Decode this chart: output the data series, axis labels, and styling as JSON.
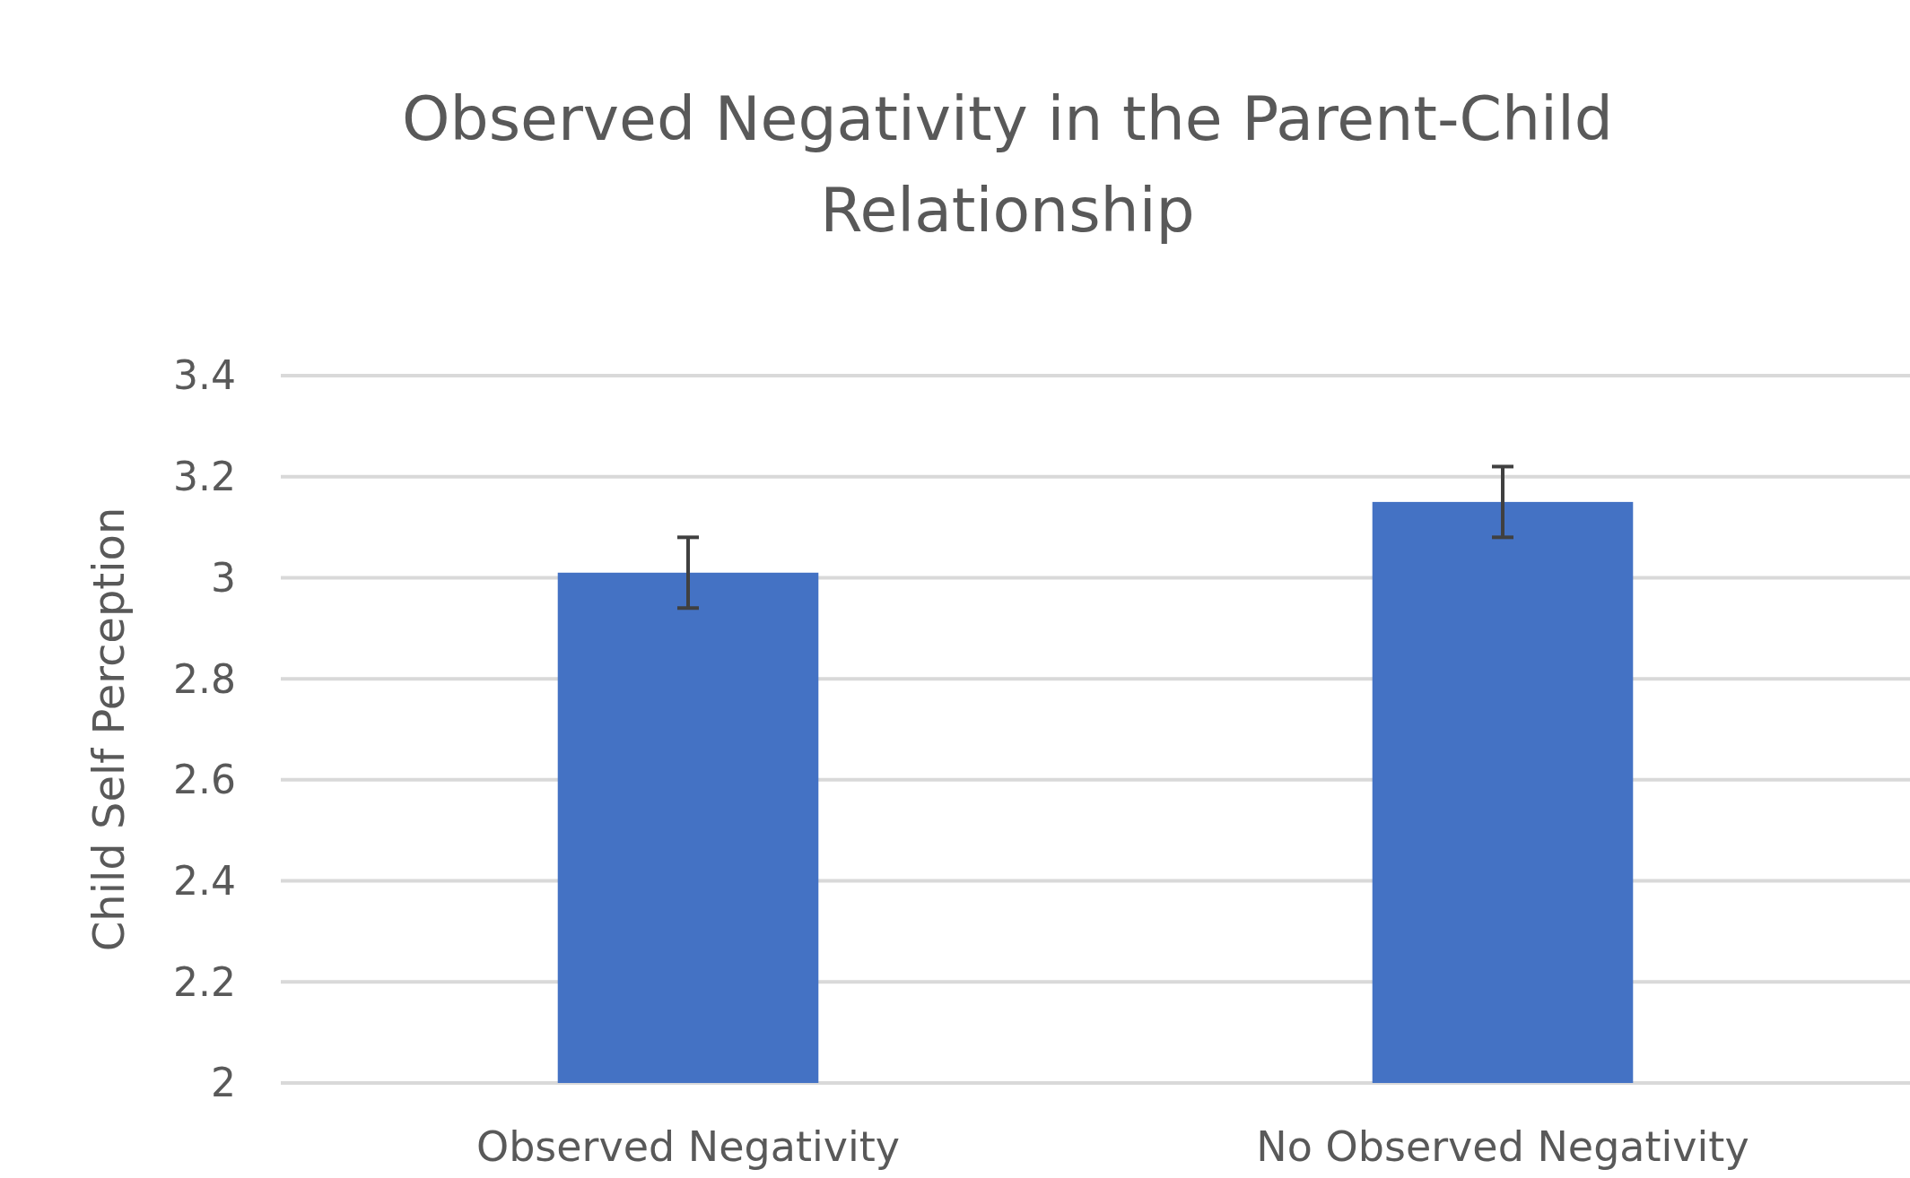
{
  "chart_data": {
    "type": "bar",
    "title": "Observed  Negativity in the Parent-Child Relationship",
    "ylabel": "Child Self Perception",
    "categories": [
      "Observed Negativity",
      "No Observed Negativity"
    ],
    "values": [
      3.01,
      3.15
    ],
    "errors": [
      0.07,
      0.07
    ],
    "color": "#4472c4",
    "ylim": [
      2,
      3.4
    ],
    "yticks": [
      2,
      2.2,
      2.4,
      2.6,
      2.8,
      3,
      3.2,
      3.4
    ],
    "grid": "y"
  }
}
